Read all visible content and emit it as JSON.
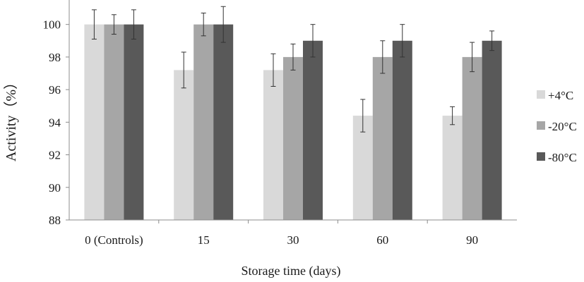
{
  "chart_data": {
    "type": "bar",
    "title": "",
    "xlabel": "Storage time (days)",
    "ylabel": "Activity（%）",
    "ylim": [
      88,
      101.5
    ],
    "yticks": [
      88,
      90,
      92,
      94,
      96,
      98,
      100
    ],
    "grid": false,
    "legend_position": "right",
    "categories": [
      "0 (Controls)",
      "15",
      "30",
      "60",
      "90"
    ],
    "series": [
      {
        "name": "+4°C",
        "color": "#d9d9d9",
        "values": [
          100,
          97.2,
          97.2,
          94.4,
          94.4
        ],
        "errors": [
          0.9,
          1.1,
          1.0,
          1.0,
          0.55
        ]
      },
      {
        "name": "-20°C",
        "color": "#a6a6a6",
        "values": [
          100,
          100,
          98,
          98,
          98
        ],
        "errors": [
          0.6,
          0.7,
          0.8,
          1.0,
          0.9
        ]
      },
      {
        "name": "-80°C",
        "color": "#595959",
        "values": [
          100,
          100,
          99,
          99,
          99
        ],
        "errors": [
          0.9,
          1.1,
          1.0,
          1.0,
          0.6
        ]
      }
    ]
  }
}
